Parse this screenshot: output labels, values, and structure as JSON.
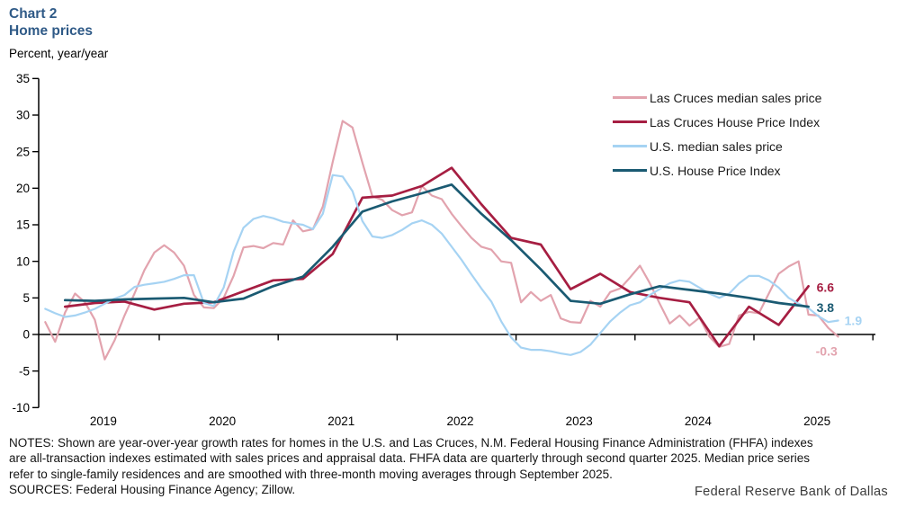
{
  "header": {
    "chart_label": "Chart 2",
    "title": "Home prices",
    "unit_label": "Percent, year/year"
  },
  "chart_data": {
    "type": "line",
    "title": "Home prices",
    "ylabel": "Percent, year/year",
    "ylim": [
      -10,
      35
    ],
    "y_ticks": [
      35,
      30,
      25,
      20,
      15,
      10,
      5,
      0,
      -5,
      -10
    ],
    "x_year_labels": [
      "2019",
      "2020",
      "2021",
      "2022",
      "2023",
      "2024",
      "2025"
    ],
    "x_range_years": [
      "2019-01",
      "2026-01"
    ],
    "grid": false,
    "legend_position": "top-right",
    "series": [
      {
        "name": "Las Cruces median sales price",
        "color": "#E2A3AE",
        "frequency": "monthly",
        "start": "2019-01",
        "end": "2025-09",
        "end_label": "-0.3",
        "values": [
          1.7,
          -1.0,
          3.0,
          5.6,
          4.4,
          2.0,
          -3.4,
          -0.8,
          2.6,
          5.6,
          8.8,
          11.2,
          12.2,
          11.2,
          9.4,
          5.4,
          3.7,
          3.6,
          5.0,
          8.0,
          11.9,
          12.1,
          11.8,
          12.5,
          12.3,
          15.6,
          14.1,
          14.4,
          17.5,
          23.6,
          29.2,
          28.3,
          23.5,
          18.9,
          18.4,
          17.0,
          16.3,
          16.7,
          20.3,
          19.0,
          18.5,
          16.5,
          14.8,
          13.2,
          12.0,
          11.6,
          10.0,
          9.8,
          4.4,
          5.8,
          4.6,
          5.4,
          2.2,
          1.7,
          1.6,
          4.6,
          3.8,
          5.8,
          6.3,
          7.8,
          9.4,
          7.0,
          4.2,
          1.5,
          2.6,
          1.2,
          2.3,
          -0.3,
          -1.7,
          -1.3,
          2.6,
          3.1,
          2.9,
          5.6,
          8.3,
          9.3,
          10.0,
          2.7,
          2.6,
          0.9,
          -0.3
        ]
      },
      {
        "name": "Las Cruces House Price Index",
        "color": "#A61E42",
        "frequency": "quarterly",
        "start": "2019-Q1",
        "end": "2025-Q2",
        "end_label": "6.6",
        "values": [
          3.8,
          4.3,
          4.5,
          3.4,
          4.2,
          4.4,
          5.9,
          7.4,
          7.6,
          11.0,
          18.7,
          19.0,
          20.3,
          22.8,
          17.8,
          13.2,
          12.3,
          6.2,
          8.3,
          5.8,
          5.0,
          4.4,
          -1.6,
          3.8,
          1.3,
          6.6
        ]
      },
      {
        "name": "U.S. median sales price",
        "color": "#A6D3F3",
        "frequency": "monthly",
        "start": "2019-01",
        "end": "2025-09",
        "end_label": "1.9",
        "values": [
          3.5,
          2.9,
          2.4,
          2.6,
          3.0,
          3.5,
          4.2,
          4.9,
          5.4,
          6.5,
          6.8,
          7.0,
          7.2,
          7.6,
          8.1,
          8.1,
          4.3,
          3.9,
          6.4,
          11.3,
          14.6,
          15.8,
          16.2,
          15.9,
          15.4,
          15.2,
          15.0,
          14.4,
          16.5,
          21.8,
          21.6,
          19.6,
          15.5,
          13.4,
          13.2,
          13.6,
          14.3,
          15.2,
          15.6,
          15.0,
          13.8,
          12.0,
          10.2,
          8.2,
          6.3,
          4.5,
          1.8,
          -0.4,
          -1.8,
          -2.1,
          -2.1,
          -2.3,
          -2.6,
          -2.8,
          -2.4,
          -1.4,
          0.2,
          1.8,
          3.0,
          4.0,
          4.4,
          5.4,
          6.2,
          7.0,
          7.4,
          7.2,
          6.4,
          5.6,
          5.0,
          5.6,
          7.0,
          8.0,
          8.0,
          7.4,
          6.4,
          5.0,
          4.2,
          3.6,
          2.5,
          1.7,
          1.9
        ]
      },
      {
        "name": "U.S. House Price Index",
        "color": "#1A5A72",
        "frequency": "quarterly",
        "start": "2019-Q1",
        "end": "2025-Q2",
        "end_label": "3.8",
        "values": [
          4.7,
          4.6,
          4.8,
          4.9,
          5.0,
          4.4,
          4.9,
          6.6,
          7.9,
          12.0,
          16.8,
          18.2,
          19.3,
          20.5,
          16.5,
          12.9,
          8.9,
          4.6,
          4.2,
          5.5,
          6.6,
          6.1,
          5.6,
          5.0,
          4.3,
          3.8
        ]
      }
    ]
  },
  "notes": {
    "line1": "NOTES: Shown are year-over-year growth rates for homes in the U.S. and Las Cruces, N.M. Federal Housing Finance Administration (FHFA) indexes",
    "line2": "are all-transaction indexes estimated with sales prices and appraisal data. FHFA data are quarterly through second quarter 2025. Median price series",
    "line3": "refer to single-family residences and are smoothed with three-month moving averages through September 2025.",
    "sources": "SOURCES: Federal Housing Finance Agency; Zillow."
  },
  "footer": {
    "attribution": "Federal Reserve Bank of Dallas"
  },
  "colors": {
    "title_blue": "#2F5A87",
    "axis_black": "#000000",
    "lc_median_pink": "#E2A3AE",
    "lc_hpi_crimson": "#A61E42",
    "us_median_blue": "#A6D3F3",
    "us_hpi_teal": "#1A5A72"
  }
}
